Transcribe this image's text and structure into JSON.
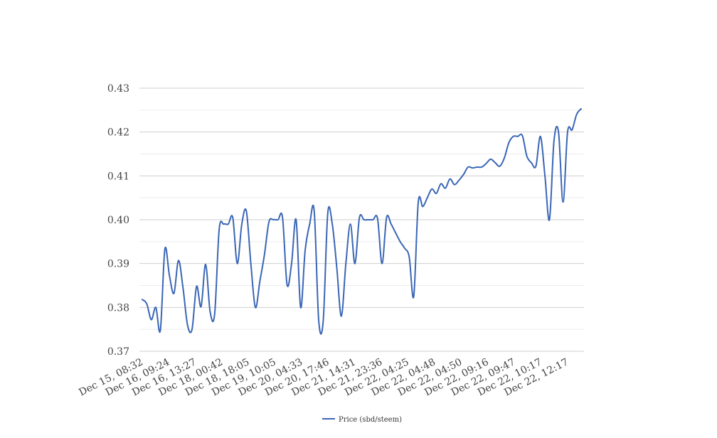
{
  "chart_data": {
    "type": "line",
    "title": "",
    "xlabel": "",
    "ylabel": "",
    "ylim": [
      0.37,
      0.43
    ],
    "y_ticks": [
      "0.37",
      "0.38",
      "0.39",
      "0.40",
      "0.41",
      "0.42",
      "0.43"
    ],
    "x_tick_labels": [
      "Dec 15, 08:32",
      "Dec 16, 09:24",
      "Dec 16, 13:27",
      "Dec 18, 00:42",
      "Dec 18, 18:05",
      "Dec 19, 10:05",
      "Dec 20, 04:33",
      "Dec 20, 17:46",
      "Dec 21, 14:31",
      "Dec 21, 23:36",
      "Dec 22, 04:25",
      "Dec 22, 04:48",
      "Dec 22, 04:50",
      "Dec 22, 09:16",
      "Dec 22, 09:47",
      "Dec 22, 10:17",
      "Dec 22, 12:17"
    ],
    "grid": true,
    "legend_position": "bottom-center",
    "line_color": "#3a66b5",
    "series": [
      {
        "name": "Price (sbd/steem)",
        "values": [
          0.3818,
          0.3808,
          0.3772,
          0.38,
          0.3748,
          0.3933,
          0.3873,
          0.3832,
          0.3907,
          0.3845,
          0.376,
          0.375,
          0.3848,
          0.3802,
          0.3898,
          0.379,
          0.3785,
          0.3978,
          0.399,
          0.399,
          0.4005,
          0.39,
          0.399,
          0.402,
          0.39,
          0.38,
          0.386,
          0.392,
          0.3995,
          0.4,
          0.4,
          0.4005,
          0.3852,
          0.39,
          0.4,
          0.38,
          0.393,
          0.399,
          0.402,
          0.377,
          0.377,
          0.4015,
          0.399,
          0.389,
          0.378,
          0.39,
          0.399,
          0.39,
          0.4005,
          0.4,
          0.4,
          0.4,
          0.4003,
          0.39,
          0.4005,
          0.399,
          0.397,
          0.395,
          0.3935,
          0.3915,
          0.3825,
          0.404,
          0.403,
          0.405,
          0.407,
          0.406,
          0.4082,
          0.4072,
          0.4093,
          0.408,
          0.409,
          0.4103,
          0.412,
          0.4118,
          0.412,
          0.412,
          0.4128,
          0.4138,
          0.413,
          0.4122,
          0.414,
          0.4175,
          0.419,
          0.419,
          0.4192,
          0.4145,
          0.413,
          0.4122,
          0.419,
          0.41,
          0.4,
          0.418,
          0.42,
          0.404,
          0.42,
          0.4205,
          0.424,
          0.4253
        ]
      }
    ]
  }
}
